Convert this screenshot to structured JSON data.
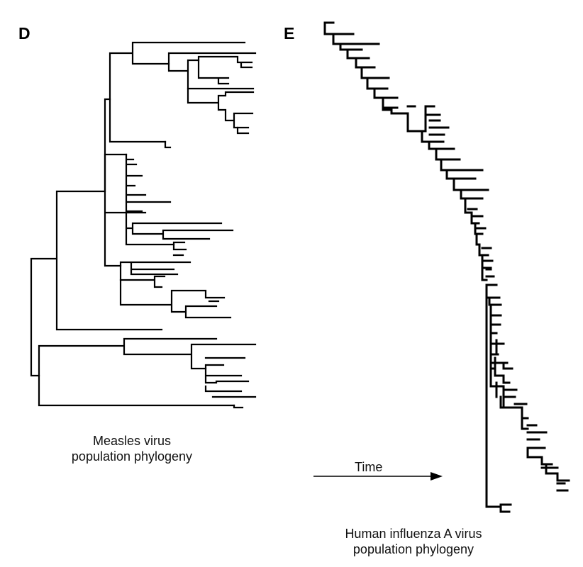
{
  "panel_d": {
    "letter": "D",
    "caption_line1": "Measles virus",
    "caption_line2": "population phylogeny"
  },
  "panel_e": {
    "letter": "E",
    "time_label": "Time",
    "caption_line1": "Human influenza A virus",
    "caption_line2": "population phylogeny"
  },
  "colors": {
    "ink": "#000000",
    "background": "#ffffff"
  }
}
